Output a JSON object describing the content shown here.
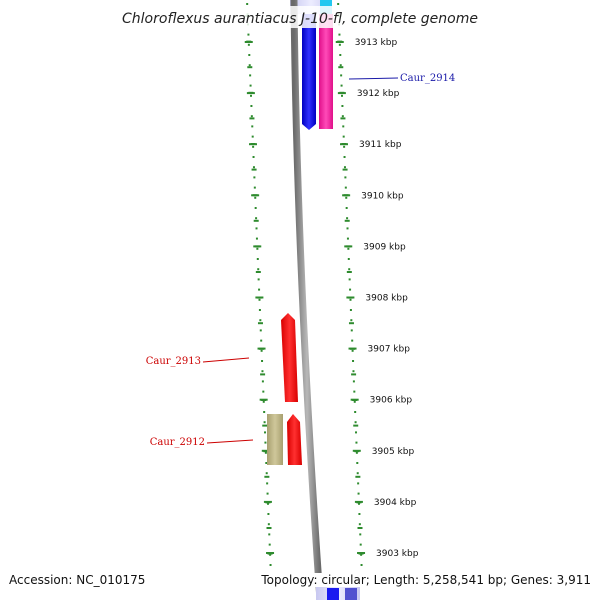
{
  "title": "Chloroflexus aurantiacus J-10-fl, complete genome",
  "ticks": [
    {
      "label": "3913 kbp",
      "value": 3913
    },
    {
      "label": "3912 kbp",
      "value": 3912
    },
    {
      "label": "3911 kbp",
      "value": 3911
    },
    {
      "label": "3910 kbp",
      "value": 3910
    },
    {
      "label": "3909 kbp",
      "value": 3909
    },
    {
      "label": "3908 kbp",
      "value": 3908
    },
    {
      "label": "3907 kbp",
      "value": 3907
    },
    {
      "label": "3906 kbp",
      "value": 3906
    },
    {
      "label": "3905 kbp",
      "value": 3905
    },
    {
      "label": "3904 kbp",
      "value": 3904
    },
    {
      "label": "3903 kbp",
      "value": 3903
    }
  ],
  "genes": [
    {
      "label": "Caur_2914",
      "color": "#1a1aa8"
    },
    {
      "label": "Caur_2913",
      "color": "#cc0000"
    },
    {
      "label": "Caur_2912",
      "color": "#cc0000"
    }
  ],
  "footer": {
    "accession": "Accession: NC_010175",
    "topology": "Topology: circular; Length: 5,258,541 bp; Genes: 3,911"
  },
  "colors": {
    "backbone": "#8a8a8a",
    "ruler": "#2e8b2e",
    "cds_forward_blue": "#1a1af0",
    "cds_pink": "#ff1aa8",
    "cds_red": "#ff0000",
    "cds_khaki": "#b8b07a",
    "cds_cyan": "#22c8f0"
  }
}
